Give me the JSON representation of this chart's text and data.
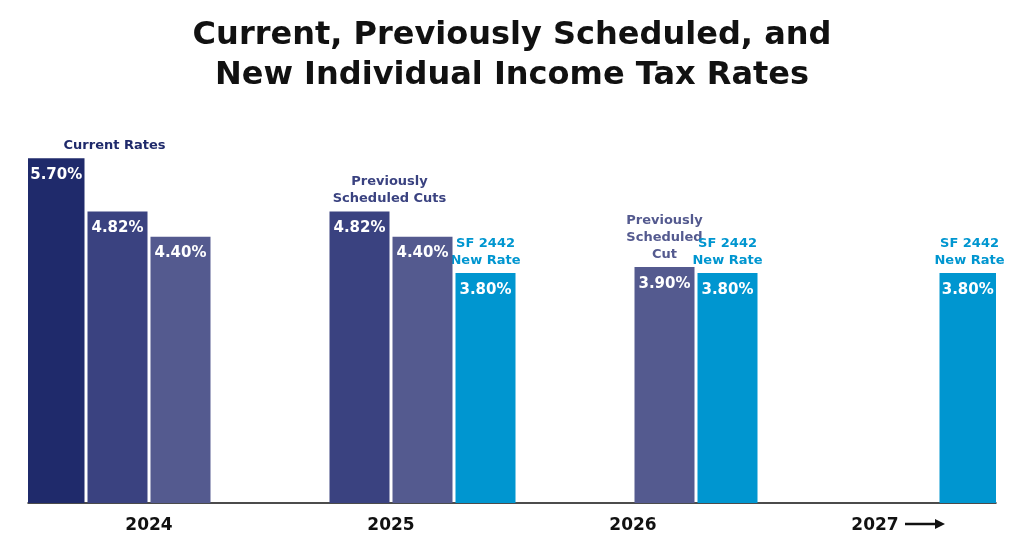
{
  "chart_data": {
    "type": "bar",
    "title": "Current, Previously Scheduled, and\nNew Individual Income Tax Rates",
    "categories": [
      "2024",
      "2025",
      "2026",
      "2027"
    ],
    "series": [
      {
        "color": "#1f2a6b",
        "values": [
          5.7,
          null,
          null,
          null
        ],
        "value_labels": [
          "5.70%",
          null,
          null,
          null
        ]
      },
      {
        "color": "#3a4280",
        "values": [
          4.82,
          4.82,
          null,
          null
        ],
        "value_labels": [
          "4.82%",
          "4.82%",
          null,
          null
        ]
      },
      {
        "color": "#545a8f",
        "values": [
          4.4,
          4.4,
          3.9,
          null
        ],
        "value_labels": [
          "4.40%",
          "4.40%",
          "3.90%",
          null
        ]
      },
      {
        "color": "#0096d0",
        "values": [
          null,
          3.8,
          3.8,
          3.8
        ],
        "value_labels": [
          null,
          "3.80%",
          "3.80%",
          "3.80%"
        ]
      }
    ],
    "tick_labels": "x",
    "grid": false,
    "annotations": [
      "Current Rates",
      "Previously\nScheduled Cuts",
      "SF 2442\nNew Rate",
      "Previously\nScheduled\nCut",
      "SF 2442\nNew Rate",
      "SF 2442\nNew Rate"
    ]
  }
}
